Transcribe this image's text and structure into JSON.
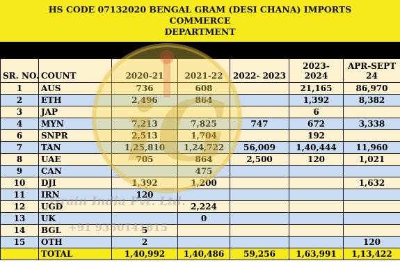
{
  "title": {
    "line1": "HS CODE 07132020 BENGAL GRAM (DESI CHANA) IMPORTS COMMERCE",
    "line2": "DEPARTMENT"
  },
  "columns": [
    "SR. NO.",
    "COUNT",
    "2020-21",
    "2021-22",
    "2022- 2023",
    "2023-2024",
    "APR-SEPT 24"
  ],
  "rows": [
    {
      "sr": "1",
      "count": "AUS",
      "v2021": "736",
      "v2122": "608",
      "v2223": "",
      "v2324": "21,165",
      "v24": "86,970"
    },
    {
      "sr": "2",
      "count": "ETH",
      "v2021": "2,496",
      "v2122": "864",
      "v2223": "",
      "v2324": "1,392",
      "v24": "8,382"
    },
    {
      "sr": "3",
      "count": "JAP",
      "v2021": "",
      "v2122": "",
      "v2223": "",
      "v2324": "6",
      "v24": ""
    },
    {
      "sr": "4",
      "count": "MYN",
      "v2021": "7,213",
      "v2122": "7,825",
      "v2223": "747",
      "v2324": "672",
      "v24": "3,338"
    },
    {
      "sr": "6",
      "count": "SNPR",
      "v2021": "2,513",
      "v2122": "1,704",
      "v2223": "",
      "v2324": "192",
      "v24": ""
    },
    {
      "sr": "7",
      "count": "TAN",
      "v2021": "1,25,810",
      "v2122": "1,24,722",
      "v2223": "56,009",
      "v2324": "1,40,444",
      "v24": "11,960"
    },
    {
      "sr": "8",
      "count": "UAE",
      "v2021": "705",
      "v2122": "864",
      "v2223": "2,500",
      "v2324": "120",
      "v24": "1,021"
    },
    {
      "sr": "9",
      "count": "CAN",
      "v2021": "",
      "v2122": "475",
      "v2223": "",
      "v2324": "",
      "v24": ""
    },
    {
      "sr": "10",
      "count": "DJI",
      "v2021": "1,392",
      "v2122": "1,200",
      "v2223": "",
      "v2324": "",
      "v24": "1,632"
    },
    {
      "sr": "11",
      "count": "IRN",
      "v2021": "120",
      "v2122": "",
      "v2223": "",
      "v2324": "",
      "v24": ""
    },
    {
      "sr": "12",
      "count": "UGD",
      "v2021": "",
      "v2122": "2,224",
      "v2223": "",
      "v2324": "",
      "v24": ""
    },
    {
      "sr": "13",
      "count": "UK",
      "v2021": "",
      "v2122": "0",
      "v2223": "",
      "v2324": "",
      "v24": ""
    },
    {
      "sr": "14",
      "count": "BGL",
      "v2021": "5",
      "v2122": "",
      "v2223": "",
      "v2324": "",
      "v24": ""
    },
    {
      "sr": "15",
      "count": "OTH",
      "v2021": "2",
      "v2122": "",
      "v2223": "",
      "v2324": "",
      "v24": "120"
    }
  ],
  "total": {
    "label": "TOTAL",
    "v2021": "1,40,992",
    "v2122": "1,40,486",
    "v2223": "59,256",
    "v2324": "1,63,991",
    "v24": "1,13,422"
  },
  "watermark": {
    "line1": "Grain India Pvt. Ltd.",
    "line2": "+91 9350141815",
    "logo_text": "iGrain"
  },
  "colors": {
    "title_bg": "#f7ea1a",
    "row_light": "#fdf2cf",
    "row_blue": "#c9dcf2",
    "total_bg": "#f7ea1a"
  }
}
